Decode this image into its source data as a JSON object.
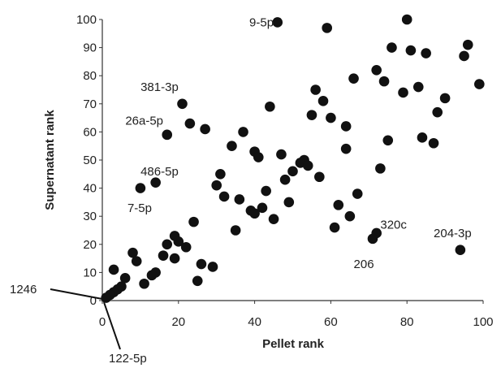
{
  "chart_data": {
    "type": "scatter",
    "xlabel": "Pellet rank",
    "ylabel": "Supernatant rank",
    "xlim": [
      0,
      100
    ],
    "ylim": [
      0,
      100
    ],
    "xticks": [
      "0",
      "20",
      "40",
      "60",
      "80",
      "100"
    ],
    "yticks": [
      "0",
      "10",
      "20",
      "30",
      "40",
      "50",
      "60",
      "70",
      "80",
      "90",
      "100"
    ],
    "grid": false,
    "marker_color": "#111111",
    "points": [
      {
        "x": 46,
        "y": 99
      },
      {
        "x": 80,
        "y": 100
      },
      {
        "x": 59,
        "y": 97
      },
      {
        "x": 96,
        "y": 91
      },
      {
        "x": 76,
        "y": 90
      },
      {
        "x": 95,
        "y": 87
      },
      {
        "x": 81,
        "y": 89
      },
      {
        "x": 85,
        "y": 88
      },
      {
        "x": 72,
        "y": 82
      },
      {
        "x": 66,
        "y": 79
      },
      {
        "x": 74,
        "y": 78
      },
      {
        "x": 99,
        "y": 77
      },
      {
        "x": 83,
        "y": 76
      },
      {
        "x": 56,
        "y": 75
      },
      {
        "x": 79,
        "y": 74
      },
      {
        "x": 90,
        "y": 72
      },
      {
        "x": 58,
        "y": 71
      },
      {
        "x": 21,
        "y": 70
      },
      {
        "x": 44,
        "y": 69
      },
      {
        "x": 88,
        "y": 67
      },
      {
        "x": 55,
        "y": 66
      },
      {
        "x": 60,
        "y": 65
      },
      {
        "x": 23,
        "y": 63
      },
      {
        "x": 64,
        "y": 62
      },
      {
        "x": 27,
        "y": 61
      },
      {
        "x": 37,
        "y": 60
      },
      {
        "x": 17,
        "y": 59
      },
      {
        "x": 84,
        "y": 58
      },
      {
        "x": 75,
        "y": 57
      },
      {
        "x": 87,
        "y": 56
      },
      {
        "x": 34,
        "y": 55
      },
      {
        "x": 64,
        "y": 54
      },
      {
        "x": 40,
        "y": 53
      },
      {
        "x": 47,
        "y": 52
      },
      {
        "x": 41,
        "y": 51
      },
      {
        "x": 53,
        "y": 50
      },
      {
        "x": 52,
        "y": 49
      },
      {
        "x": 54,
        "y": 48
      },
      {
        "x": 73,
        "y": 47
      },
      {
        "x": 50,
        "y": 46
      },
      {
        "x": 31,
        "y": 45
      },
      {
        "x": 57,
        "y": 44
      },
      {
        "x": 48,
        "y": 43
      },
      {
        "x": 14,
        "y": 42
      },
      {
        "x": 30,
        "y": 41
      },
      {
        "x": 10,
        "y": 40
      },
      {
        "x": 43,
        "y": 39
      },
      {
        "x": 67,
        "y": 38
      },
      {
        "x": 32,
        "y": 37
      },
      {
        "x": 36,
        "y": 36
      },
      {
        "x": 49,
        "y": 35
      },
      {
        "x": 62,
        "y": 34
      },
      {
        "x": 42,
        "y": 33
      },
      {
        "x": 39,
        "y": 32
      },
      {
        "x": 40,
        "y": 31
      },
      {
        "x": 65,
        "y": 30
      },
      {
        "x": 45,
        "y": 29
      },
      {
        "x": 24,
        "y": 28
      },
      {
        "x": 61,
        "y": 26
      },
      {
        "x": 35,
        "y": 25
      },
      {
        "x": 72,
        "y": 24
      },
      {
        "x": 19,
        "y": 23
      },
      {
        "x": 71,
        "y": 22
      },
      {
        "x": 20,
        "y": 21
      },
      {
        "x": 17,
        "y": 20
      },
      {
        "x": 22,
        "y": 19
      },
      {
        "x": 94,
        "y": 18
      },
      {
        "x": 8,
        "y": 17
      },
      {
        "x": 16,
        "y": 16
      },
      {
        "x": 19,
        "y": 15
      },
      {
        "x": 9,
        "y": 14
      },
      {
        "x": 26,
        "y": 13
      },
      {
        "x": 29,
        "y": 12
      },
      {
        "x": 3,
        "y": 11
      },
      {
        "x": 14,
        "y": 10
      },
      {
        "x": 13,
        "y": 9
      },
      {
        "x": 6,
        "y": 8
      },
      {
        "x": 25,
        "y": 7
      },
      {
        "x": 11,
        "y": 6
      },
      {
        "x": 5,
        "y": 5
      },
      {
        "x": 4,
        "y": 4
      },
      {
        "x": 3,
        "y": 3
      },
      {
        "x": 2,
        "y": 2
      },
      {
        "x": 1,
        "y": 1
      }
    ],
    "annotations": [
      {
        "text": "9-5p",
        "x": 45,
        "y": 99,
        "anchor": "end"
      },
      {
        "text": "381-3p",
        "x": 20,
        "y": 76,
        "anchor": "end"
      },
      {
        "text": "26a-5p",
        "x": 16,
        "y": 64,
        "anchor": "end"
      },
      {
        "text": "486-5p",
        "x": 20,
        "y": 46,
        "anchor": "end"
      },
      {
        "text": "7-5p",
        "x": 13,
        "y": 33,
        "anchor": "end"
      },
      {
        "text": "320c",
        "x": 73,
        "y": 27,
        "anchor": "start"
      },
      {
        "text": "204-3p",
        "x": 87,
        "y": 24,
        "anchor": "start"
      },
      {
        "text": "206",
        "x": 66,
        "y": 13,
        "anchor": "start"
      }
    ],
    "callouts": [
      {
        "text": "1246",
        "x": 0,
        "y": 0
      },
      {
        "text": "122-5p",
        "x": 0,
        "y": 0
      }
    ]
  }
}
